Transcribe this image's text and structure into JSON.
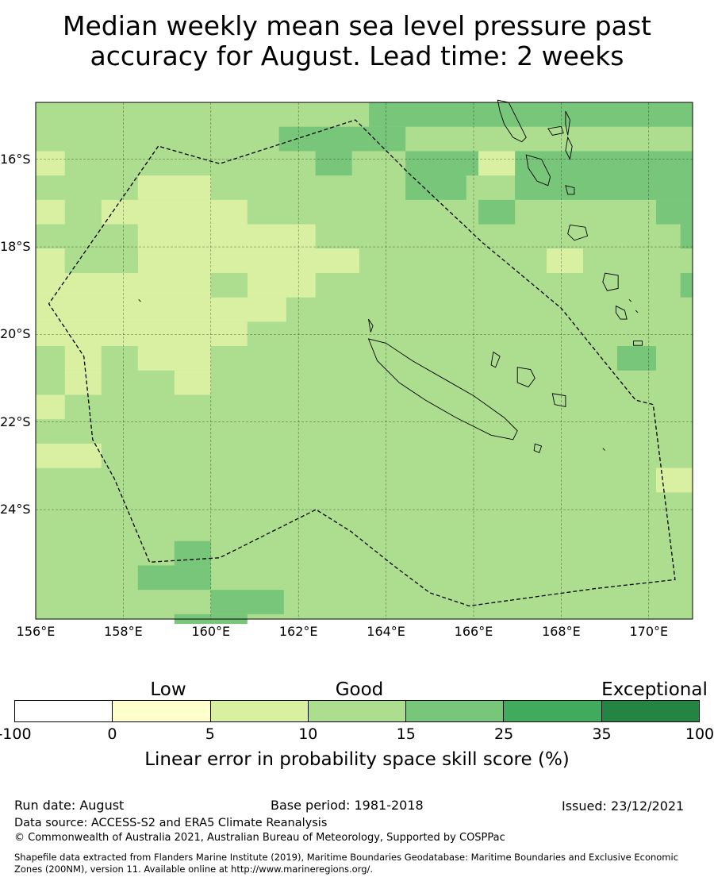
{
  "title_line1": "Median weekly mean sea level pressure past",
  "title_line2": "accuracy for August. Lead time: 2 weeks",
  "map": {
    "lon_range": [
      156,
      171
    ],
    "lat_range": [
      -26.5,
      -14.7
    ],
    "lat_ticks": [
      {
        "value": -16,
        "label": "16°S"
      },
      {
        "value": -18,
        "label": "18°S"
      },
      {
        "value": -20,
        "label": "20°S"
      },
      {
        "value": -22,
        "label": "22°S"
      },
      {
        "value": -24,
        "label": "24°S"
      }
    ],
    "lon_ticks": [
      {
        "value": 156,
        "label": "156°E"
      },
      {
        "value": 158,
        "label": "158°E"
      },
      {
        "value": 160,
        "label": "160°E"
      },
      {
        "value": 162,
        "label": "162°E"
      },
      {
        "value": 164,
        "label": "164°E"
      },
      {
        "value": 166,
        "label": "166°E"
      },
      {
        "value": 168,
        "label": "168°E"
      },
      {
        "value": 170,
        "label": "170°E"
      }
    ],
    "grid_lines": true,
    "eez_boundary": [
      [
        158.8,
        -15.7
      ],
      [
        156.3,
        -19.3
      ],
      [
        157.1,
        -20.5
      ],
      [
        157.3,
        -22.4
      ],
      [
        157.8,
        -23.3
      ],
      [
        158.6,
        -25.2
      ],
      [
        160.2,
        -25.1
      ],
      [
        162.4,
        -24.0
      ],
      [
        163.2,
        -24.5
      ],
      [
        164.2,
        -25.3
      ],
      [
        165.0,
        -25.9
      ],
      [
        165.9,
        -26.2
      ],
      [
        168.8,
        -25.8
      ],
      [
        170.6,
        -25.6
      ],
      [
        170.1,
        -21.6
      ],
      [
        169.7,
        -21.5
      ],
      [
        168.0,
        -19.4
      ],
      [
        166.2,
        -17.9
      ],
      [
        164.5,
        -16.3
      ],
      [
        163.3,
        -15.1
      ],
      [
        160.2,
        -16.1
      ],
      [
        158.8,
        -15.7
      ]
    ],
    "land": [
      {
        "name": "New Caledonia Grande Terre",
        "outline": [
          [
            163.6,
            -20.1
          ],
          [
            164.0,
            -20.2
          ],
          [
            164.6,
            -20.6
          ],
          [
            165.3,
            -21.0
          ],
          [
            166.0,
            -21.4
          ],
          [
            166.7,
            -21.9
          ],
          [
            167.0,
            -22.2
          ],
          [
            166.9,
            -22.4
          ],
          [
            166.4,
            -22.3
          ],
          [
            165.6,
            -21.9
          ],
          [
            164.9,
            -21.5
          ],
          [
            164.3,
            -21.1
          ],
          [
            163.8,
            -20.6
          ],
          [
            163.6,
            -20.1
          ]
        ]
      },
      {
        "name": "Espiritu Santo",
        "outline": [
          [
            166.55,
            -14.65
          ],
          [
            166.8,
            -14.7
          ],
          [
            167.0,
            -15.1
          ],
          [
            167.2,
            -15.5
          ],
          [
            167.1,
            -15.6
          ],
          [
            166.9,
            -15.5
          ],
          [
            166.7,
            -15.2
          ],
          [
            166.6,
            -14.9
          ],
          [
            166.55,
            -14.65
          ]
        ]
      },
      {
        "name": "Malakula",
        "outline": [
          [
            167.2,
            -15.9
          ],
          [
            167.55,
            -16.0
          ],
          [
            167.75,
            -16.4
          ],
          [
            167.7,
            -16.6
          ],
          [
            167.45,
            -16.5
          ],
          [
            167.25,
            -16.2
          ],
          [
            167.2,
            -15.9
          ]
        ]
      },
      {
        "name": "Efate",
        "outline": [
          [
            168.2,
            -17.5
          ],
          [
            168.55,
            -17.55
          ],
          [
            168.6,
            -17.75
          ],
          [
            168.3,
            -17.85
          ],
          [
            168.15,
            -17.7
          ],
          [
            168.2,
            -17.5
          ]
        ]
      },
      {
        "name": "Erromango",
        "outline": [
          [
            169.0,
            -18.6
          ],
          [
            169.3,
            -18.65
          ],
          [
            169.3,
            -18.95
          ],
          [
            169.05,
            -19.0
          ],
          [
            168.95,
            -18.8
          ],
          [
            169.0,
            -18.6
          ]
        ]
      },
      {
        "name": "Tanna",
        "outline": [
          [
            169.25,
            -19.35
          ],
          [
            169.45,
            -19.45
          ],
          [
            169.5,
            -19.65
          ],
          [
            169.35,
            -19.65
          ],
          [
            169.25,
            -19.5
          ],
          [
            169.25,
            -19.35
          ]
        ]
      },
      {
        "name": "Lifou",
        "outline": [
          [
            167.0,
            -20.75
          ],
          [
            167.3,
            -20.8
          ],
          [
            167.4,
            -21.0
          ],
          [
            167.25,
            -21.2
          ],
          [
            167.0,
            -21.1
          ],
          [
            167.0,
            -20.75
          ]
        ]
      },
      {
        "name": "Mare",
        "outline": [
          [
            167.8,
            -21.35
          ],
          [
            168.1,
            -21.4
          ],
          [
            168.1,
            -21.65
          ],
          [
            167.85,
            -21.6
          ],
          [
            167.8,
            -21.35
          ]
        ]
      },
      {
        "name": "Ouvea",
        "outline": [
          [
            166.45,
            -20.4
          ],
          [
            166.6,
            -20.5
          ],
          [
            166.5,
            -20.75
          ],
          [
            166.4,
            -20.7
          ],
          [
            166.45,
            -20.4
          ]
        ]
      },
      {
        "name": "Maewo",
        "outline": [
          [
            168.1,
            -14.9
          ],
          [
            168.2,
            -15.1
          ],
          [
            168.15,
            -15.45
          ],
          [
            168.1,
            -15.2
          ],
          [
            168.1,
            -14.9
          ]
        ]
      },
      {
        "name": "Pentecost",
        "outline": [
          [
            168.15,
            -15.5
          ],
          [
            168.25,
            -15.7
          ],
          [
            168.2,
            -16.0
          ],
          [
            168.1,
            -15.8
          ],
          [
            168.15,
            -15.5
          ]
        ]
      },
      {
        "name": "Ambae",
        "outline": [
          [
            167.7,
            -15.3
          ],
          [
            168.0,
            -15.25
          ],
          [
            168.05,
            -15.4
          ],
          [
            167.8,
            -15.45
          ],
          [
            167.7,
            -15.3
          ]
        ]
      },
      {
        "name": "Epi",
        "outline": [
          [
            168.1,
            -16.6
          ],
          [
            168.3,
            -16.65
          ],
          [
            168.3,
            -16.8
          ],
          [
            168.15,
            -16.8
          ],
          [
            168.1,
            -16.6
          ]
        ]
      },
      {
        "name": "Isle of Pines",
        "outline": [
          [
            167.4,
            -22.5
          ],
          [
            167.55,
            -22.55
          ],
          [
            167.5,
            -22.7
          ],
          [
            167.38,
            -22.65
          ],
          [
            167.4,
            -22.5
          ]
        ]
      },
      {
        "name": "Chesterfield",
        "outline": [
          [
            158.35,
            -19.2
          ],
          [
            158.4,
            -19.25
          ]
        ]
      },
      {
        "name": "Walpole",
        "outline": [
          [
            168.95,
            -22.6
          ],
          [
            169.0,
            -22.65
          ]
        ]
      },
      {
        "name": "Hunter",
        "outline": [
          [
            169.55,
            -19.2
          ],
          [
            169.6,
            -19.25
          ]
        ]
      },
      {
        "name": "Matthew",
        "outline": [
          [
            169.7,
            -19.45
          ],
          [
            169.75,
            -19.5
          ]
        ]
      },
      {
        "name": "Belep",
        "outline": [
          [
            163.6,
            -19.65
          ],
          [
            163.7,
            -19.8
          ],
          [
            163.65,
            -19.95
          ],
          [
            163.6,
            -19.65
          ]
        ]
      },
      {
        "name": "Aneityum",
        "outline": [
          [
            169.65,
            -20.15
          ],
          [
            169.85,
            -20.15
          ],
          [
            169.85,
            -20.25
          ],
          [
            169.65,
            -20.25
          ],
          [
            169.65,
            -20.15
          ]
        ]
      }
    ]
  },
  "skill_grid": {
    "lon_start": 156.0,
    "lat_start": -14.7,
    "cell": 0.556,
    "rows": [
      [
        3,
        3,
        3,
        3,
        3,
        3,
        3,
        3,
        3,
        3,
        3,
        3,
        3,
        3,
        3,
        3,
        3,
        3,
        3,
        3,
        3,
        3,
        3,
        3,
        3,
        3,
        3,
        3
      ],
      [
        3,
        3,
        3,
        3,
        3,
        3,
        3,
        3,
        3,
        3,
        3,
        3,
        3,
        3,
        3,
        3,
        3,
        3,
        3,
        3,
        3,
        3,
        3,
        3,
        3,
        3,
        3,
        3
      ],
      [
        3,
        3,
        3,
        3,
        3,
        3,
        3,
        3,
        3,
        3,
        3,
        3,
        3,
        3,
        3,
        3,
        3,
        3,
        3,
        3,
        3,
        3,
        3,
        3,
        3,
        3,
        3,
        3
      ],
      [
        3,
        3,
        3,
        3,
        3,
        3,
        3,
        3,
        3,
        3,
        3,
        3,
        3,
        3,
        3,
        3,
        3,
        3,
        3,
        3,
        3,
        3,
        3,
        3,
        3,
        3,
        3,
        3
      ],
      [
        3,
        3,
        3,
        3,
        3,
        3,
        3,
        3,
        3,
        3,
        3,
        3,
        3,
        3,
        3,
        3,
        3,
        3,
        3,
        3,
        3,
        3,
        3,
        3,
        3,
        3,
        3,
        3
      ],
      [
        3,
        3,
        3,
        3,
        3,
        3,
        3,
        3,
        3,
        3,
        3,
        3,
        3,
        3,
        3,
        3,
        3,
        3,
        3,
        3,
        3,
        3,
        3,
        3,
        3,
        3,
        3,
        3
      ]
    ],
    "block_cells": [
      {
        "col0": 13.7,
        "col1": 27.0,
        "row0": 0,
        "row1": 1,
        "level": 4
      },
      {
        "col0": 10.0,
        "col1": 13.7,
        "row0": 1,
        "row1": 2,
        "level": 4
      },
      {
        "col0": 13.7,
        "col1": 15.2,
        "row0": 1,
        "row1": 2,
        "level": 4
      },
      {
        "col0": 11.5,
        "col1": 13.0,
        "row0": 2,
        "row1": 3,
        "level": 4
      },
      {
        "col0": 15.2,
        "col1": 18.2,
        "row0": 2,
        "row1": 3,
        "level": 4
      },
      {
        "col0": 19.7,
        "col1": 27.0,
        "row0": 2,
        "row1": 3,
        "level": 4
      },
      {
        "col0": 15.2,
        "col1": 17.7,
        "row0": 3,
        "row1": 4,
        "level": 4
      },
      {
        "col0": 19.7,
        "col1": 27.0,
        "row0": 3,
        "row1": 4,
        "level": 4
      },
      {
        "col0": 18.2,
        "col1": 19.7,
        "row0": 4,
        "row1": 5,
        "level": 4
      },
      {
        "col0": 25.5,
        "col1": 27.0,
        "row0": 4,
        "row1": 5,
        "level": 4
      },
      {
        "col0": 26.5,
        "col1": 27.0,
        "row0": 5,
        "row1": 6,
        "level": 4
      },
      {
        "col0": 0.0,
        "col1": 1.2,
        "row0": 2,
        "row1": 3,
        "level": 2
      },
      {
        "col0": 18.2,
        "col1": 19.7,
        "row0": 2,
        "row1": 3,
        "level": 2
      },
      {
        "col0": 4.2,
        "col1": 7.2,
        "row0": 3,
        "row1": 4,
        "level": 2
      },
      {
        "col0": 0.0,
        "col1": 1.2,
        "row0": 4,
        "row1": 5,
        "level": 2
      },
      {
        "col0": 2.7,
        "col1": 8.7,
        "row0": 4,
        "row1": 5,
        "level": 2
      },
      {
        "col0": 4.2,
        "col1": 11.5,
        "row0": 5,
        "row1": 6,
        "level": 2
      },
      {
        "col0": 0.0,
        "col1": 1.2,
        "row0": 6,
        "row1": 7,
        "level": 2
      },
      {
        "col0": 4.2,
        "col1": 13.3,
        "row0": 6,
        "row1": 7,
        "level": 2
      },
      {
        "col0": 21.0,
        "col1": 22.5,
        "row0": 6,
        "row1": 7,
        "level": 2
      },
      {
        "col0": 0.0,
        "col1": 7.2,
        "row0": 7,
        "row1": 8,
        "level": 2
      },
      {
        "col0": 8.7,
        "col1": 11.5,
        "row0": 7,
        "row1": 8,
        "level": 2
      },
      {
        "col0": 0.0,
        "col1": 10.3,
        "row0": 8,
        "row1": 9,
        "level": 2
      },
      {
        "col0": 0.0,
        "col1": 8.7,
        "row0": 9,
        "row1": 10,
        "level": 2
      },
      {
        "col0": 1.2,
        "col1": 2.7,
        "row0": 10,
        "row1": 11,
        "level": 2
      },
      {
        "col0": 4.2,
        "col1": 7.2,
        "row0": 10,
        "row1": 11,
        "level": 2
      },
      {
        "col0": 1.2,
        "col1": 2.7,
        "row0": 11,
        "row1": 12,
        "level": 2
      },
      {
        "col0": 5.7,
        "col1": 7.2,
        "row0": 11,
        "row1": 12,
        "level": 2
      },
      {
        "col0": 0.0,
        "col1": 1.2,
        "row0": 12,
        "row1": 13,
        "level": 2
      },
      {
        "col0": 0.0,
        "col1": 2.7,
        "row0": 14,
        "row1": 15,
        "level": 2
      },
      {
        "col0": 25.5,
        "col1": 27.0,
        "row0": 15,
        "row1": 16,
        "level": 2
      },
      {
        "col0": 1.2,
        "col1": 4.2,
        "row0": 6,
        "row1": 7,
        "level": 3
      },
      {
        "col0": 7.2,
        "col1": 8.7,
        "row0": 7,
        "row1": 8,
        "level": 3
      },
      {
        "col0": 26.5,
        "col1": 27.0,
        "row0": 7,
        "row1": 8,
        "level": 4
      },
      {
        "col0": 23.9,
        "col1": 25.5,
        "row0": 10,
        "row1": 11,
        "level": 4
      },
      {
        "col0": 5.7,
        "col1": 7.2,
        "row0": 18,
        "row1": 19,
        "level": 4
      },
      {
        "col0": 4.2,
        "col1": 7.2,
        "row0": 19,
        "row1": 20,
        "level": 4
      },
      {
        "col0": 7.2,
        "col1": 10.2,
        "row0": 20,
        "row1": 21,
        "level": 4
      },
      {
        "col0": 5.7,
        "col1": 8.7,
        "row0": 21,
        "row1": 21.4,
        "level": 4
      }
    ]
  },
  "colorbar": {
    "categories": [
      {
        "label": "Low",
        "at": "0-5"
      },
      {
        "label": "Good",
        "at": "10-15"
      },
      {
        "label": "Exceptional",
        "at": "35-100"
      }
    ],
    "bins": [
      {
        "from": "-100",
        "to": "0",
        "color": "#ffffff"
      },
      {
        "from": "0",
        "to": "5",
        "color": "#ffffcc"
      },
      {
        "from": "5",
        "to": "10",
        "color": "#d9f0a3"
      },
      {
        "from": "10",
        "to": "15",
        "color": "#addd8e"
      },
      {
        "from": "15",
        "to": "25",
        "color": "#78c679"
      },
      {
        "from": "25",
        "to": "35",
        "color": "#41ab5d"
      },
      {
        "from": "35",
        "to": "100",
        "color": "#238443"
      }
    ],
    "ticks": [
      "-100",
      "0",
      "5",
      "10",
      "15",
      "25",
      "35",
      "100"
    ],
    "title": "Linear error in probability space skill score (%)"
  },
  "footer": {
    "run_date": "Run date: August",
    "base_period": "Base period: 1981-2018",
    "issued": "Issued: 23/12/2021",
    "data_source": "Data source: ACCESS-S2 and ERA5 Climate Reanalysis",
    "copyright": "© Commonwealth of Australia 2021, Australian Bureau of Meteorology, Supported by COSPPac",
    "shapefile_line1": "Shapefile data extracted from Flanders Marine Institute (2019), Maritime Boundaries Geodatabase: Maritime Boundaries and Exclusive Economic",
    "shapefile_line2": "Zones (200NM), version 11. Available online at http://www.marineregions.org/."
  }
}
